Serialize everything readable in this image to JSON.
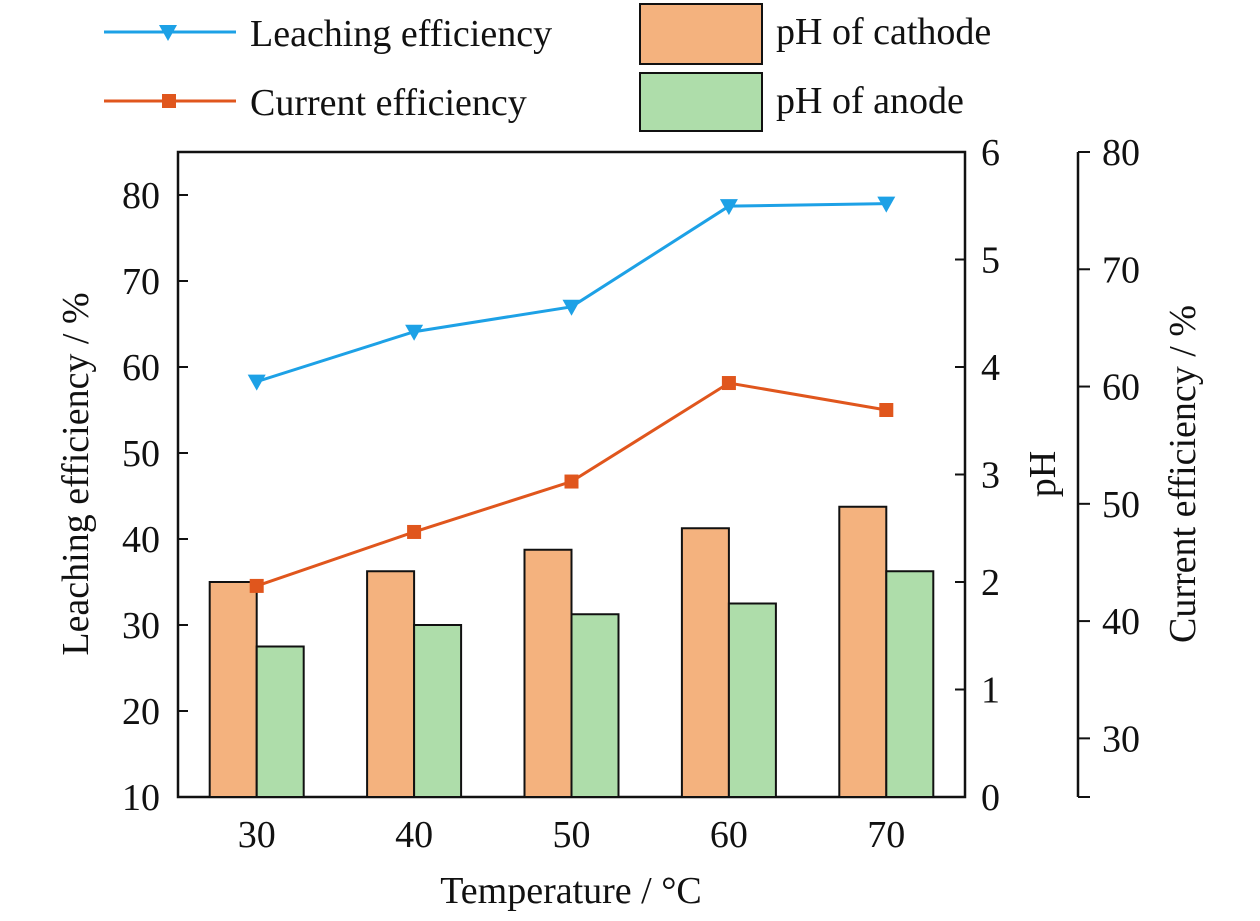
{
  "chart_data": {
    "type": "bar",
    "categories": [
      "30",
      "40",
      "50",
      "60",
      "70"
    ],
    "xlabel": "Temperature / °C",
    "bar_series": [
      {
        "name": "pH of cathode",
        "color": "#F4B27E",
        "values": [
          2.0,
          2.1,
          2.3,
          2.5,
          2.7
        ]
      },
      {
        "name": "pH of anode",
        "color": "#AEDDAA",
        "values": [
          1.4,
          1.6,
          1.7,
          1.8,
          2.1
        ]
      }
    ],
    "line_series": [
      {
        "name": "Leaching efficiency",
        "color": "#1DA1E6",
        "marker": "triangle-down",
        "axis": "left",
        "values": [
          58.3,
          64.1,
          67.0,
          78.7,
          79.0
        ]
      },
      {
        "name": "Current efficiency",
        "color": "#E0561D",
        "marker": "square",
        "axis": "right2",
        "values": [
          43.0,
          47.6,
          51.9,
          60.3,
          58.0
        ]
      }
    ],
    "axes": {
      "left": {
        "label": "Leaching efficiency / %",
        "ylim": [
          10,
          85
        ],
        "ticks": [
          "10",
          "20",
          "30",
          "40",
          "50",
          "60",
          "70",
          "80"
        ]
      },
      "right1": {
        "label": "pH",
        "ylim": [
          0,
          6
        ],
        "ticks": [
          "0",
          "1",
          "2",
          "3",
          "4",
          "5",
          "6"
        ]
      },
      "right2": {
        "label": "Current efficiency / %",
        "ylim": [
          25,
          80
        ],
        "ticks": [
          "30",
          "40",
          "50",
          "60",
          "70",
          "80"
        ]
      }
    },
    "legend_position": "top",
    "grid": false
  }
}
